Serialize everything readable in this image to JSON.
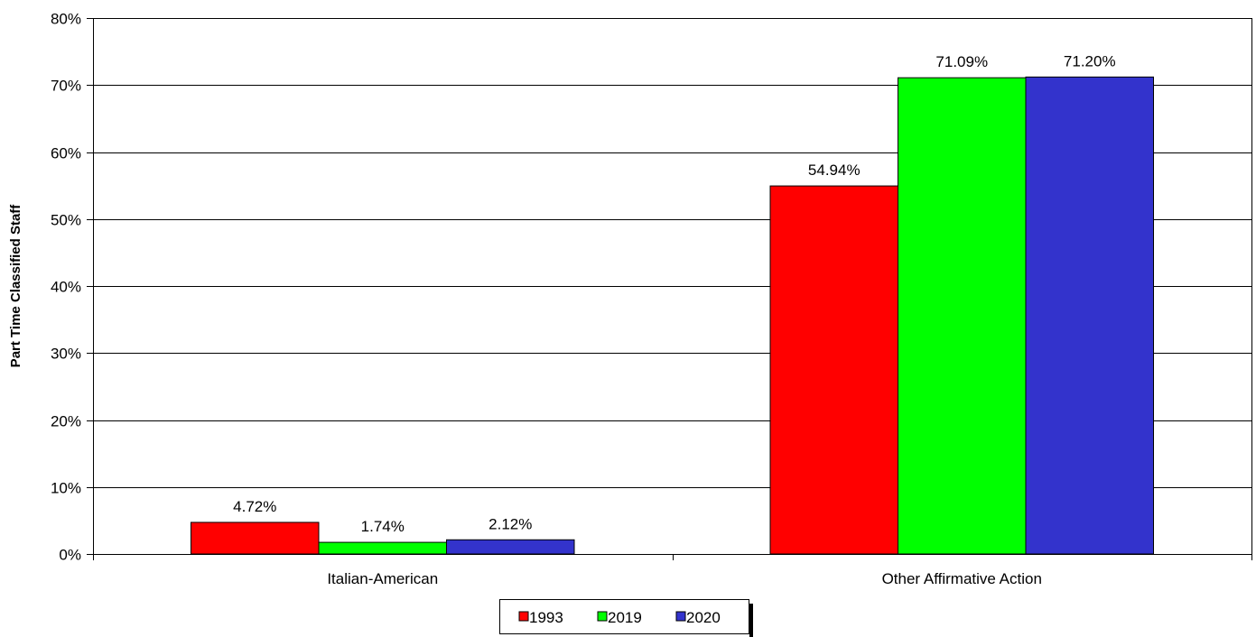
{
  "chart_data": {
    "type": "bar",
    "categories": [
      "Italian-American",
      "Other Affirmative Action"
    ],
    "series": [
      {
        "name": "1993",
        "color": "#ff0000",
        "values": [
          4.72,
          54.94
        ],
        "labels": [
          "4.72%",
          "54.94%"
        ]
      },
      {
        "name": "2019",
        "color": "#00ff00",
        "values": [
          1.74,
          71.09
        ],
        "labels": [
          "1.74%",
          "71.09%"
        ]
      },
      {
        "name": "2020",
        "color": "#3333cc",
        "values": [
          2.12,
          71.2
        ],
        "labels": [
          "2.12%",
          "71.20%"
        ]
      }
    ],
    "title": "",
    "xlabel": "",
    "ylabel": "Part Time Classified Staff",
    "ylim": [
      0,
      80
    ],
    "yticks": [
      0,
      10,
      20,
      30,
      40,
      50,
      60,
      70,
      80
    ],
    "ytick_labels": [
      "0%",
      "10%",
      "20%",
      "30%",
      "40%",
      "50%",
      "60%",
      "70%",
      "80%"
    ],
    "grid": true,
    "legend_position": "bottom"
  }
}
